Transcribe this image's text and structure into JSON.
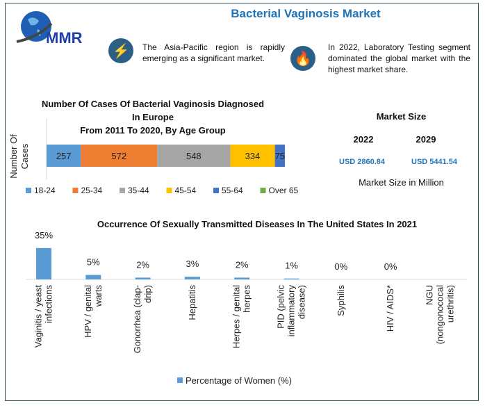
{
  "header": {
    "title": "Bacterial Vaginosis Market",
    "logo_text": "MMR",
    "info": [
      {
        "icon": "lightning-icon",
        "text": "The Asia-Pacific region is rapidly emerging as a significant market."
      },
      {
        "icon": "flame-icon",
        "text": "In 2022, Laboratory Testing segment dominated the global market with the highest market share."
      }
    ]
  },
  "market_size": {
    "title": "Market Size",
    "years": [
      "2022",
      "2029"
    ],
    "values": [
      "USD 2860.84",
      "USD 5441.54"
    ],
    "note": "Market Size in Million",
    "accent": "#1f74b7"
  },
  "chart_data": [
    {
      "type": "bar",
      "orientation": "horizontal-stacked",
      "title": [
        "Number Of Cases Of Bacterial Vaginosis Diagnosed",
        "In Europe",
        "From 2011 To 2020, By Age Group"
      ],
      "ylabel": "Number Of Cases",
      "legend": "bottom",
      "series": [
        {
          "name": "18-24",
          "value": 257,
          "color": "#5b9bd5"
        },
        {
          "name": "25-34",
          "value": 572,
          "color": "#ed7d31"
        },
        {
          "name": "35-44",
          "value": 548,
          "color": "#a5a5a5"
        },
        {
          "name": "45-54",
          "value": 334,
          "color": "#ffc000"
        },
        {
          "name": "55-64",
          "value": 75,
          "color": "#4472c4"
        },
        {
          "name": "Over 65",
          "value": null,
          "color": "#70ad47"
        }
      ]
    },
    {
      "type": "bar",
      "title": "Occurrence Of Sexually Transmitted Diseases In The United States In 2021",
      "categories": [
        [
          "Vaginitis / yeast",
          "infections"
        ],
        [
          "HPV / genital",
          "warts"
        ],
        [
          "Gonorrhea (clap-",
          "drip)"
        ],
        [
          "Hepatitis"
        ],
        [
          "Herpes / genital",
          "herpes"
        ],
        [
          "PID (pelvic",
          "inflammatory",
          "disease)"
        ],
        [
          "Syphilis"
        ],
        [
          "HIV / AIDS*"
        ],
        [
          "NGU",
          "(nongonococal",
          "urethritis)"
        ]
      ],
      "values": [
        35,
        5,
        2,
        3,
        2,
        1,
        0,
        0,
        null
      ],
      "data_labels": [
        "35%",
        "5%",
        "2%",
        "3%",
        "2%",
        "1%",
        "0%",
        "0%",
        ""
      ],
      "series_name": "Percentage of Women (%)",
      "color": "#5b9bd5",
      "legend": "bottom"
    }
  ]
}
